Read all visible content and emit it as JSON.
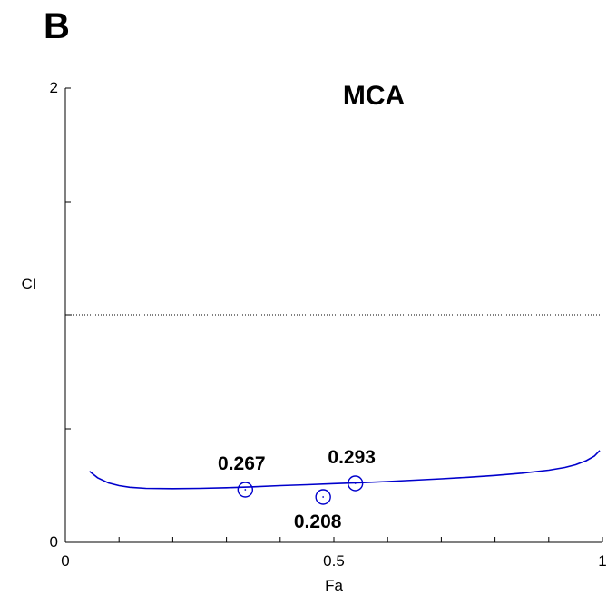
{
  "panel_label": "B",
  "chart_data": {
    "type": "line",
    "title": "MCA",
    "xlabel": "Fa",
    "ylabel": "CI",
    "xlim": [
      0,
      1
    ],
    "ylim": [
      0,
      2
    ],
    "x_ticks": [
      {
        "value": 0,
        "label": "0"
      },
      {
        "value": 0.5,
        "label": "0.5"
      },
      {
        "value": 1,
        "label": "1"
      }
    ],
    "x_minor_ticks": [
      0.1,
      0.2,
      0.3,
      0.4,
      0.6,
      0.7,
      0.8,
      0.9
    ],
    "y_ticks": [
      {
        "value": 0,
        "label": "0"
      },
      {
        "value": 2,
        "label": "2"
      }
    ],
    "y_minor_ticks": [
      0.5,
      1.0,
      1.5
    ],
    "reference_line": {
      "y": 1,
      "style": "dotted",
      "color": "#000000"
    },
    "series": [
      {
        "color": "#0000cc",
        "x": [
          0.045,
          0.06,
          0.08,
          0.1,
          0.12,
          0.15,
          0.2,
          0.25,
          0.3,
          0.35,
          0.4,
          0.45,
          0.5,
          0.55,
          0.6,
          0.65,
          0.7,
          0.75,
          0.8,
          0.85,
          0.9,
          0.93,
          0.95,
          0.97,
          0.985,
          0.995
        ],
        "y": [
          0.313,
          0.285,
          0.262,
          0.25,
          0.243,
          0.238,
          0.237,
          0.238,
          0.241,
          0.245,
          0.25,
          0.254,
          0.259,
          0.263,
          0.268,
          0.274,
          0.28,
          0.287,
          0.295,
          0.305,
          0.318,
          0.33,
          0.342,
          0.36,
          0.38,
          0.405
        ]
      }
    ],
    "markers": [
      {
        "x": 0.335,
        "y": 0.232,
        "label": "0.267",
        "label_pos": "above"
      },
      {
        "x": 0.48,
        "y": 0.2,
        "label": "0.208",
        "label_pos": "below"
      },
      {
        "x": 0.54,
        "y": 0.26,
        "label": "0.293",
        "label_pos": "above"
      }
    ]
  }
}
